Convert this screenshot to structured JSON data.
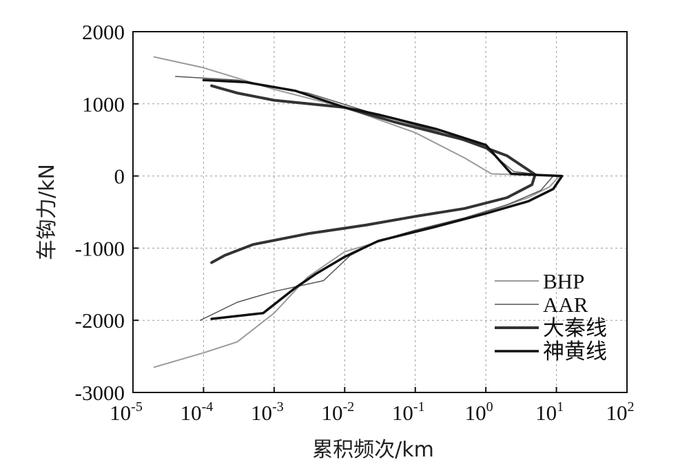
{
  "chart_data": {
    "type": "line",
    "title": "",
    "xlabel": "累积频次/km",
    "ylabel": "车钩力/kN",
    "xscale": "log",
    "xlim": [
      1e-05,
      100
    ],
    "ylim": [
      -3000,
      2000
    ],
    "x_ticks": [
      {
        "base": "10",
        "exp": "-5",
        "value": 1e-05
      },
      {
        "base": "10",
        "exp": "-4",
        "value": 0.0001
      },
      {
        "base": "10",
        "exp": "-3",
        "value": 0.001
      },
      {
        "base": "10",
        "exp": "-2",
        "value": 0.01
      },
      {
        "base": "10",
        "exp": "-1",
        "value": 0.1
      },
      {
        "base": "10",
        "exp": "0",
        "value": 1
      },
      {
        "base": "10",
        "exp": "1",
        "value": 10
      },
      {
        "base": "10",
        "exp": "2",
        "value": 100
      }
    ],
    "y_ticks": [
      "2000",
      "1000",
      "0",
      "-1000",
      "-2000",
      "-3000"
    ],
    "y_tick_values": [
      2000,
      1000,
      0,
      -1000,
      -2000,
      -3000
    ],
    "grid": true,
    "legend_position": "bottom-right",
    "series": [
      {
        "name": "BHP",
        "color": "#9a9a9a",
        "points": [
          [
            2e-05,
            1650
          ],
          [
            0.0001,
            1500
          ],
          [
            0.001,
            1200
          ],
          [
            0.01,
            950
          ],
          [
            0.1,
            600
          ],
          [
            0.5,
            250
          ],
          [
            1.2,
            30
          ],
          [
            11,
            0
          ],
          [
            8,
            -150
          ],
          [
            4,
            -300
          ],
          [
            1,
            -500
          ],
          [
            0.3,
            -650
          ],
          [
            0.05,
            -850
          ],
          [
            0.01,
            -1050
          ],
          [
            0.003,
            -1400
          ],
          [
            0.001,
            -1900
          ],
          [
            0.0003,
            -2300
          ],
          [
            0.0001,
            -2450
          ],
          [
            2e-05,
            -2650
          ]
        ]
      },
      {
        "name": "AAR",
        "color": "#555555",
        "points": [
          [
            4e-05,
            1380
          ],
          [
            0.0003,
            1330
          ],
          [
            0.003,
            1150
          ],
          [
            0.02,
            900
          ],
          [
            0.2,
            620
          ],
          [
            1,
            380
          ],
          [
            2.5,
            60
          ],
          [
            9,
            0
          ],
          [
            6,
            -200
          ],
          [
            2,
            -400
          ],
          [
            0.5,
            -580
          ],
          [
            0.1,
            -750
          ],
          [
            0.03,
            -900
          ],
          [
            0.012,
            -1100
          ],
          [
            0.005,
            -1450
          ],
          [
            0.001,
            -1600
          ],
          [
            0.0003,
            -1750
          ],
          [
            9e-05,
            -2000
          ]
        ]
      },
      {
        "name": "大秦线",
        "color": "#333333",
        "points": [
          [
            0.00013,
            1250
          ],
          [
            0.0003,
            1150
          ],
          [
            0.001,
            1050
          ],
          [
            0.01,
            950
          ],
          [
            0.05,
            750
          ],
          [
            0.5,
            500
          ],
          [
            2,
            280
          ],
          [
            5,
            20
          ],
          [
            4.5,
            -120
          ],
          [
            2,
            -300
          ],
          [
            0.5,
            -450
          ],
          [
            0.1,
            -560
          ],
          [
            0.02,
            -680
          ],
          [
            0.003,
            -800
          ],
          [
            0.0005,
            -950
          ],
          [
            0.0002,
            -1100
          ],
          [
            0.00013,
            -1200
          ]
        ]
      },
      {
        "name": "神黄线",
        "color": "#111111",
        "points": [
          [
            0.0001,
            1330
          ],
          [
            0.0004,
            1300
          ],
          [
            0.002,
            1180
          ],
          [
            0.01,
            950
          ],
          [
            0.03,
            850
          ],
          [
            0.2,
            650
          ],
          [
            1,
            430
          ],
          [
            2.3,
            30
          ],
          [
            12,
            0
          ],
          [
            9,
            -180
          ],
          [
            4,
            -350
          ],
          [
            1,
            -520
          ],
          [
            0.2,
            -700
          ],
          [
            0.03,
            -900
          ],
          [
            0.01,
            -1120
          ],
          [
            0.004,
            -1350
          ],
          [
            0.002,
            -1550
          ],
          [
            0.0007,
            -1900
          ],
          [
            0.00013,
            -1980
          ]
        ]
      }
    ]
  }
}
